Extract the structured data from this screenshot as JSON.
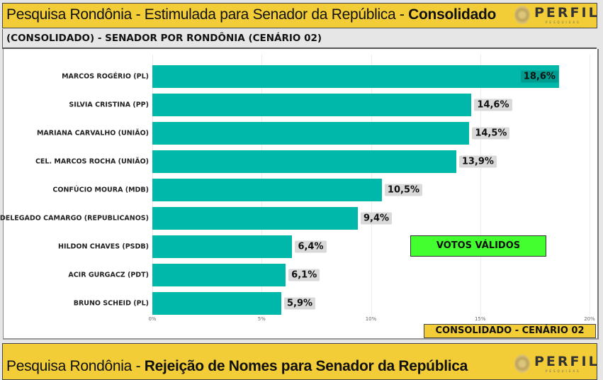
{
  "header": {
    "title_prefix": "Pesquisa Rondônia - Estimulada para Senador da República - ",
    "title_bold": "Consolidado",
    "logo_text": "PERFIL",
    "logo_sub": "PESQUISAS"
  },
  "subheader": "(CONSOLIDADO) - SENADOR POR RONDÔNIA (CENÁRIO 02)",
  "badges": {
    "votos": "VOTOS VÁLIDOS",
    "consolidado": "CONSOLIDADO - CENÁRIO 02"
  },
  "header2": {
    "title_prefix": "Pesquisa Rondônia - ",
    "title_bold": "Rejeição de Nomes para Senador da República",
    "logo_text": "PERFIL",
    "logo_sub": "PESQUISAS"
  },
  "chart_data": {
    "type": "bar",
    "orientation": "horizontal",
    "categories": [
      "MARCOS ROGÉRIO (PL)",
      "SILVIA CRISTINA (PP)",
      "MARIANA CARVALHO (UNIÃO)",
      "CEL. MARCOS ROCHA (UNIÃO)",
      "CONFÚCIO MOURA (MDB)",
      "DELEGADO CAMARGO (REPUBLICANOS)",
      "HILDON CHAVES (PSDB)",
      "ACIR GURGACZ (PDT)",
      "BRUNO SCHEID (PL)"
    ],
    "values": [
      18.6,
      14.6,
      14.5,
      13.9,
      10.5,
      9.4,
      6.4,
      6.1,
      5.9
    ],
    "labels": [
      "18,6%",
      "14,6%",
      "14,5%",
      "13,9%",
      "10,5%",
      "9,4%",
      "6,4%",
      "6,1%",
      "5,9%"
    ],
    "xticks": [
      0,
      5,
      10,
      15,
      20
    ],
    "xtick_labels": [
      "0%",
      "5%",
      "10%",
      "15%",
      "20%"
    ],
    "xlim": [
      0,
      20
    ],
    "bar_color": "#00b8a9"
  }
}
